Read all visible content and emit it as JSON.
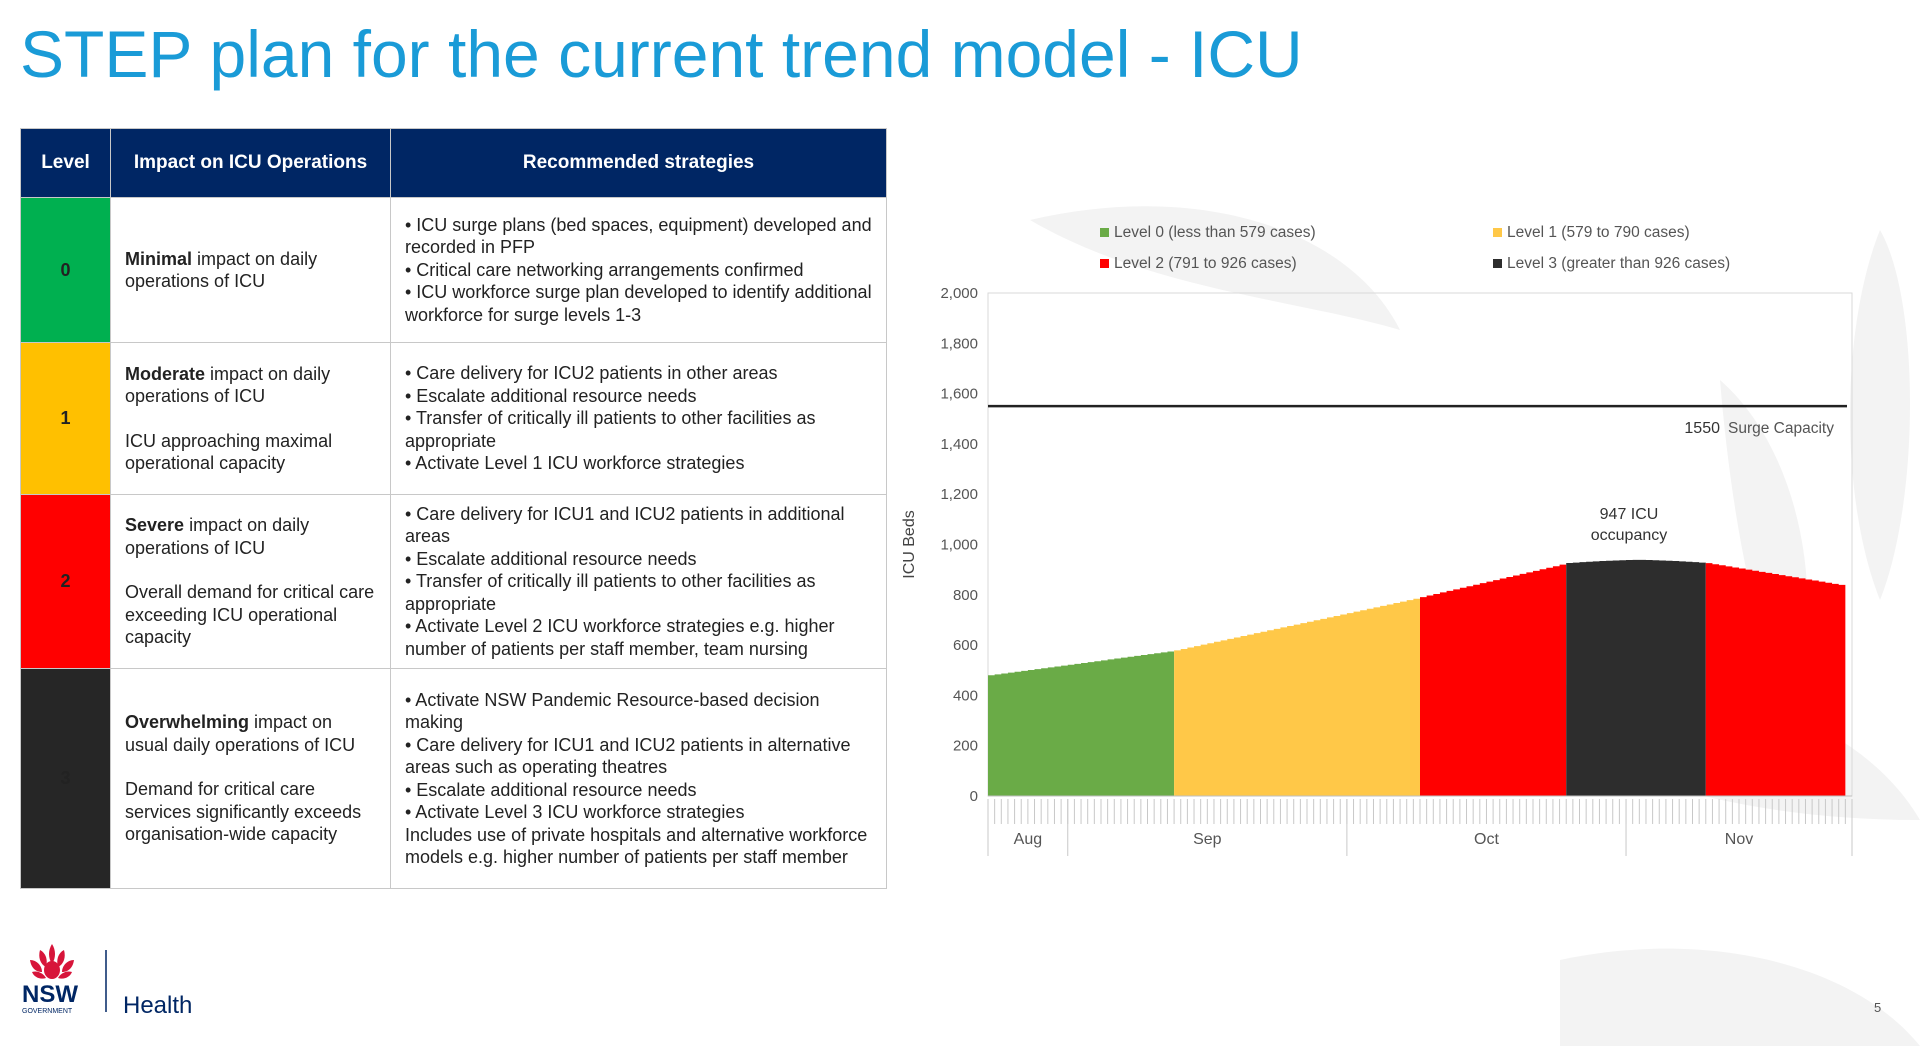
{
  "title": "STEP plan for the current trend model - ICU",
  "table": {
    "headers": [
      "Level",
      "Impact on ICU Operations",
      "Recommended strategies"
    ],
    "rows": [
      {
        "level": "0",
        "color": "#00b050",
        "impact_bold": "Minimal",
        "impact_rest": " impact on daily operations of ICU",
        "impact_extra": "",
        "strategies": [
          "• ICU surge plans (bed spaces, equipment) developed and recorded in PFP",
          "• Critical care networking arrangements confirmed",
          "• ICU workforce surge plan developed to identify additional workforce for surge levels 1-3"
        ]
      },
      {
        "level": "1",
        "color": "#ffc000",
        "impact_bold": "Moderate",
        "impact_rest": " impact on daily operations of ICU",
        "impact_extra": "ICU approaching maximal operational capacity",
        "strategies": [
          "• Care delivery for ICU2 patients in other areas",
          "• Escalate additional resource needs",
          "• Transfer of critically ill patients to other facilities as appropriate",
          "• Activate Level 1 ICU workforce strategies"
        ]
      },
      {
        "level": "2",
        "color": "#ff0000",
        "impact_bold": "Severe",
        "impact_rest": " impact on daily operations of ICU",
        "impact_extra": "Overall demand for critical care exceeding ICU operational capacity",
        "strategies": [
          "• Care delivery for ICU1 and ICU2 patients in additional areas",
          "• Escalate additional resource needs",
          "• Transfer of critically ill patients to other facilities as appropriate",
          "• Activate Level 2 ICU workforce strategies e.g. higher number of patients per staff member, team nursing"
        ]
      },
      {
        "level": "3",
        "color": "#262626",
        "impact_bold": "Overwhelming",
        "impact_rest": " impact on usual daily operations of ICU",
        "impact_extra": "Demand for critical care services significantly exceeds organisation-wide capacity",
        "strategies": [
          "• Activate NSW Pandemic Resource-based decision making",
          "• Care delivery for ICU1 and ICU2 patients in alternative areas such as operating theatres",
          "• Escalate additional resource needs",
          "• Activate Level 3 ICU workforce strategies",
          "Includes use of private hospitals and alternative workforce models e.g. higher number of patients per staff member"
        ]
      }
    ]
  },
  "chart_data": {
    "type": "area",
    "ylabel": "ICU Beds",
    "xlabel": "",
    "ylim": [
      0,
      2000
    ],
    "yticks": [
      0,
      200,
      400,
      600,
      800,
      1000,
      1200,
      1400,
      1600,
      1800,
      2000
    ],
    "yticklabels": [
      "0",
      "200",
      "400",
      "600",
      "800",
      "1,000",
      "1,200",
      "1,400",
      "1,600",
      "1,800",
      "2,000"
    ],
    "month_labels": [
      "Aug",
      "Sep",
      "Oct",
      "Nov"
    ],
    "legend": [
      {
        "name": "Level 0 (less than 579 cases)",
        "color": "#6aab47"
      },
      {
        "name": "Level 1 (579 to 790 cases)",
        "color": "#ffc848"
      },
      {
        "name": "Level 2 (791 to 926 cases)",
        "color": "#ff0000"
      },
      {
        "name": "Level 3 (greater than 926 cases)",
        "color": "#2d2d2d"
      }
    ],
    "series": [
      {
        "name": "Level 0 (less than 579 cases)",
        "color": "#6aab47",
        "day_start": 0,
        "day_end": 28,
        "values_start": 480,
        "values_end": 578
      },
      {
        "name": "Level 1 (579 to 790 cases)",
        "color": "#ffc848",
        "day_start": 28,
        "day_end": 65,
        "values_start": 579,
        "values_end": 790
      },
      {
        "name": "Level 2 (791 to 926 cases)",
        "color": "#ff0000",
        "day_start": 65,
        "day_end": 87,
        "values_start": 791,
        "values_end": 926
      },
      {
        "name": "Level 3 (greater than 926 cases)",
        "color": "#2d2d2d",
        "day_start": 87,
        "day_end": 108,
        "peak": 947
      },
      {
        "name": "Level 2 (791 to 926 cases)",
        "color": "#ff0000",
        "day_start": 108,
        "day_end": 129,
        "values_start": 926,
        "values_end": 835
      }
    ],
    "surge_capacity": {
      "value": 1550,
      "value_label": "1550",
      "label": "Surge Capacity"
    },
    "peak_annotation": "947 ICU occupancy"
  },
  "page_number": "5",
  "logo": {
    "brand": "NSW",
    "sub": "GOVERNMENT",
    "dept": "Health"
  }
}
